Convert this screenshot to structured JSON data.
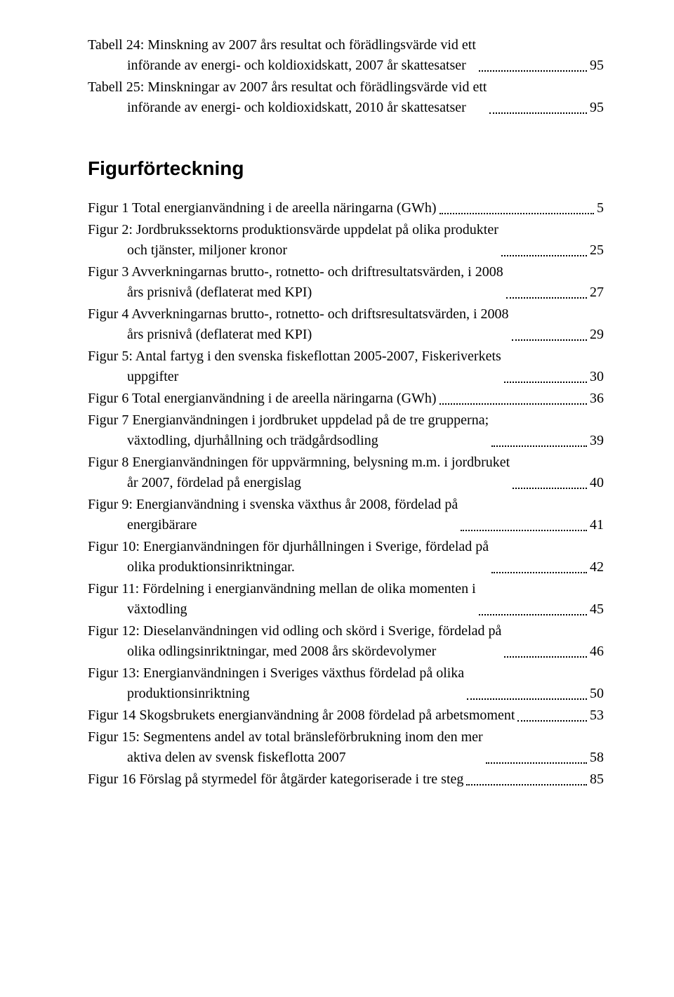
{
  "tables": [
    {
      "line1": "Tabell 24: Minskning av 2007 års resultat och förädlingsvärde vid ett",
      "line2": "införande av energi- och koldioxidskatt, 2007 år skattesatser",
      "page": "95"
    },
    {
      "line1": "Tabell 25: Minskningar av 2007 års resultat och förädlingsvärde vid ett",
      "line2": "införande av energi- och koldioxidskatt, 2010 år skattesatser",
      "page": "95"
    }
  ],
  "heading": "Figurförteckning",
  "figures": [
    {
      "line1": "Figur 1 Total energianvändning i de areella näringarna (GWh)",
      "page": "5"
    },
    {
      "line1": "Figur 2: Jordbrukssektorns produktionsvärde uppdelat på olika produkter",
      "line2": "och tjänster, miljoner kronor",
      "page": "25"
    },
    {
      "line1": "Figur 3 Avverkningarnas brutto-, rotnetto- och driftresultatsvärden, i 2008",
      "line2": "års prisnivå (deflaterat med KPI)",
      "page": "27"
    },
    {
      "line1": "Figur 4 Avverkningarnas brutto-, rotnetto- och driftsresultatsvärden, i 2008",
      "line2": "års prisnivå (deflaterat med KPI)",
      "page": "29"
    },
    {
      "line1": "Figur 5: Antal fartyg i den svenska fiskeflottan 2005-2007, Fiskeriverkets",
      "line2": "uppgifter",
      "page": "30"
    },
    {
      "line1": "Figur 6 Total energianvändning i de areella näringarna (GWh)",
      "page": "36"
    },
    {
      "line1": "Figur 7 Energianvändningen i jordbruket uppdelad på de tre grupperna;",
      "line2": "växtodling, djurhållning och trädgårdsodling",
      "page": "39"
    },
    {
      "line1": "Figur 8 Energianvändningen för uppvärmning, belysning m.m. i jordbruket",
      "line2": "år 2007, fördelad på energislag",
      "page": "40"
    },
    {
      "line1": "Figur 9: Energianvändning i svenska växthus år 2008, fördelad på",
      "line2": "energibärare",
      "page": "41"
    },
    {
      "line1": "Figur 10: Energianvändningen för djurhållningen i Sverige, fördelad på",
      "line2": "olika produktionsinriktningar.",
      "page": "42"
    },
    {
      "line1": "Figur 11: Fördelning i energianvändning mellan de olika momenten i",
      "line2": "växtodling",
      "page": "45"
    },
    {
      "line1": "Figur 12: Dieselanvändningen vid odling och skörd i Sverige, fördelad på",
      "line2": "olika odlingsinriktningar, med 2008 års skördevolymer",
      "page": "46"
    },
    {
      "line1": "Figur 13: Energianvändningen i Sveriges växthus fördelad på olika",
      "line2": "produktionsinriktning",
      "page": "50"
    },
    {
      "line1": "Figur 14 Skogsbrukets energianvändning år 2008 fördelad på arbetsmoment",
      "page": "53"
    },
    {
      "line1": "Figur 15: Segmentens andel av total bränsleförbrukning inom den mer",
      "line2": "aktiva delen av svensk fiskeflotta 2007",
      "page": "58"
    },
    {
      "line1": "Figur 16 Förslag på styrmedel för åtgärder kategoriserade i tre steg",
      "page": "85"
    }
  ]
}
